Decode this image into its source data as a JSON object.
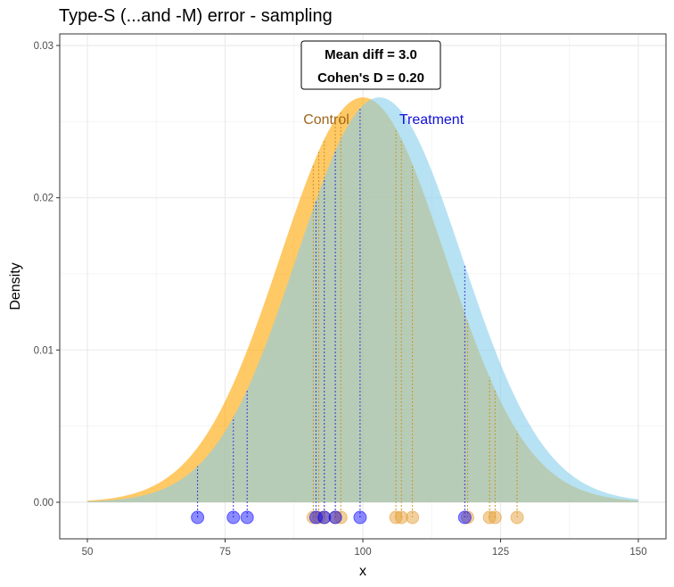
{
  "chart_data": {
    "type": "area",
    "title": "Type-S (...and -M) error - sampling",
    "xlabel": "x",
    "ylabel": "Density",
    "xlim": [
      50,
      150
    ],
    "ylim": [
      0,
      0.03
    ],
    "x_ticks": [
      50,
      75,
      100,
      125,
      150
    ],
    "x_tick_labels": [
      "50",
      "75",
      "100",
      "125",
      "150"
    ],
    "y_ticks": [
      0,
      0.01,
      0.02,
      0.03
    ],
    "y_tick_labels": [
      "0.00",
      "0.01",
      "0.02",
      "0.03"
    ],
    "grid": true,
    "annotation": {
      "lines": [
        "Mean diff = 3.0",
        "Cohen's D = 0.20"
      ]
    },
    "series": [
      {
        "name": "Control",
        "distribution": "normal",
        "mean": 100,
        "sd": 15,
        "color": "#FFA500",
        "samples": [
          91,
          92,
          93,
          95,
          96,
          106,
          107,
          109,
          119,
          123,
          124,
          128
        ]
      },
      {
        "name": "Treatment",
        "distribution": "normal",
        "mean": 103,
        "sd": 15,
        "color": "#87CEEB",
        "sample_color": "#0000FF",
        "samples": [
          70,
          76.5,
          79,
          91.5,
          93,
          95,
          99.5,
          118.5
        ]
      }
    ]
  }
}
